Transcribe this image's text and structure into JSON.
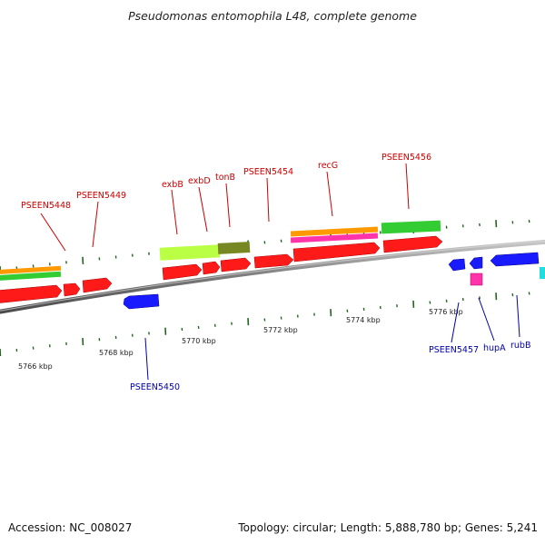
{
  "title": "Pseudomonas entomophila L48, complete genome",
  "footer": {
    "accession": "Accession: NC_008027",
    "summary": "Topology: circular; Length: 5,888,780 bp; Genes: 5,241"
  },
  "colors": {
    "plus_label": "#cc0000",
    "minus_label": "#0000aa",
    "tick": "#226622",
    "backbone": "#888888",
    "red_gene": "#ff1a1a",
    "blue_gene": "#1a1aff",
    "orange": "#ff9900",
    "green": "#33cc33",
    "magenta": "#ff33aa",
    "lime": "#bbff44",
    "olive": "#778822",
    "cyan": "#22dddd"
  },
  "scale": {
    "ticks": [
      "5766 kbp",
      "5768 kbp",
      "5770 kbp",
      "5772 kbp",
      "5774 kbp",
      "5776 kbp"
    ]
  },
  "genes": {
    "plus_labels": [
      "PSEEN5448",
      "PSEEN5449",
      "exbB",
      "exbD",
      "tonB",
      "PSEEN5454",
      "recG",
      "PSEEN5456"
    ],
    "minus_labels": [
      "PSEEN5450",
      "PSEEN5457",
      "hupA",
      "rubB"
    ]
  }
}
